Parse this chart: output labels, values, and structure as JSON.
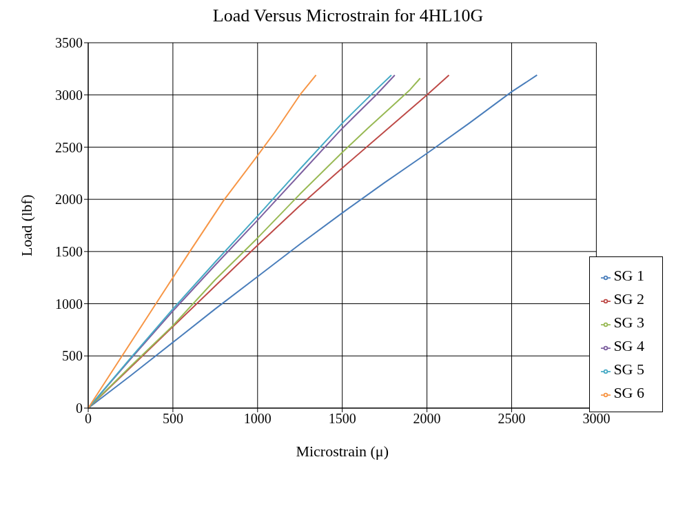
{
  "chart_data": {
    "type": "line",
    "title": "Load Versus Microstrain for 4HL10G",
    "xlabel": "Microstrain (μ)",
    "ylabel": "Load (lbf)",
    "xlim": [
      0,
      3000
    ],
    "xticks": [
      0,
      500,
      1000,
      1500,
      2000,
      2500,
      3000
    ],
    "ylim": [
      0,
      3500
    ],
    "yticks": [
      0,
      500,
      1000,
      1500,
      2000,
      2500,
      3000,
      3500
    ],
    "grid": true,
    "legend": "right",
    "marker": "none",
    "line_style": "solid",
    "series": [
      {
        "name": "SG 1",
        "color": "#4a7ebb",
        "x": [
          0,
          250,
          500,
          750,
          1000,
          1250,
          1500,
          1750,
          2000,
          2250,
          2500,
          2650
        ],
        "values": [
          0,
          310,
          630,
          950,
          1260,
          1570,
          1870,
          2160,
          2440,
          2730,
          3030,
          3190
        ]
      },
      {
        "name": "SG 2",
        "color": "#be4b48",
        "x": [
          0,
          250,
          500,
          750,
          1000,
          1250,
          1500,
          1750,
          2000,
          2130
        ],
        "values": [
          0,
          390,
          780,
          1170,
          1560,
          1940,
          2300,
          2650,
          3000,
          3190
        ]
      },
      {
        "name": "SG 3",
        "color": "#98b954",
        "x": [
          0,
          250,
          500,
          750,
          1000,
          1250,
          1500,
          1650,
          1800,
          1900,
          1960
        ],
        "values": [
          0,
          400,
          790,
          1230,
          1630,
          2050,
          2450,
          2680,
          2900,
          3050,
          3160
        ]
      },
      {
        "name": "SG 4",
        "color": "#7d60a0",
        "x": [
          0,
          250,
          500,
          750,
          1000,
          1250,
          1500,
          1700,
          1810
        ],
        "values": [
          0,
          470,
          930,
          1370,
          1800,
          2240,
          2680,
          3000,
          3190
        ]
      },
      {
        "name": "SG 5",
        "color": "#46aac5",
        "x": [
          0,
          250,
          500,
          750,
          1000,
          1250,
          1500,
          1700,
          1790
        ],
        "values": [
          0,
          480,
          950,
          1400,
          1840,
          2290,
          2730,
          3050,
          3190
        ]
      },
      {
        "name": "SG 6",
        "color": "#f79646",
        "x": [
          0,
          200,
          400,
          600,
          800,
          1000,
          1100,
          1250,
          1345
        ],
        "values": [
          0,
          500,
          1000,
          1500,
          1990,
          2420,
          2640,
          3000,
          3190
        ]
      }
    ]
  }
}
